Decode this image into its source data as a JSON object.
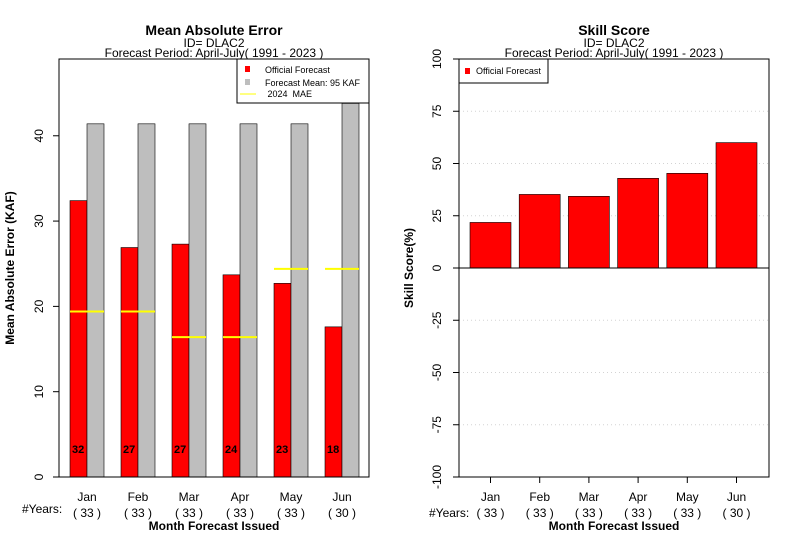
{
  "chart_data": [
    {
      "type": "bar",
      "title": "Mean Absolute Error",
      "subtitle1": "ID= DLAC2",
      "subtitle2": "Forecast Period: April-July( 1991 - 2023 )",
      "xlabel": "Month Forecast Issued",
      "ylabel": "Mean Absolute Error (KAF)",
      "categories": [
        "Jan",
        "Feb",
        "Mar",
        "Apr",
        "May",
        "Jun"
      ],
      "years_label": "#Years:",
      "years": [
        "( 33 )",
        "( 33 )",
        "( 33 )",
        "( 33 )",
        "( 33 )",
        "( 30 )"
      ],
      "ylim": [
        0,
        49
      ],
      "yticks": [
        0,
        10,
        20,
        30,
        40
      ],
      "series": [
        {
          "name": "Official Forecast",
          "color": "#ff0000",
          "values": [
            32.4,
            26.9,
            27.3,
            23.7,
            22.7,
            17.6
          ],
          "labels": [
            "32",
            "27",
            "27",
            "24",
            "23",
            "18"
          ]
        },
        {
          "name": "Forecast Mean: 95 KAF",
          "color": "#bebebe",
          "values": [
            41.4,
            41.4,
            41.4,
            41.4,
            41.4,
            43.8
          ]
        },
        {
          "name": " 2024  MAE",
          "color": "#ffff00",
          "values": [
            19.4,
            19.4,
            16.4,
            16.4,
            24.4,
            24.4
          ]
        }
      ],
      "legend_position": "top-right"
    },
    {
      "type": "bar",
      "title": "Skill Score",
      "subtitle1": "ID= DLAC2",
      "subtitle2": "Forecast Period: April-July( 1991 - 2023 )",
      "xlabel": "Month Forecast Issued",
      "ylabel": "Skill Score(%)",
      "categories": [
        "Jan",
        "Feb",
        "Mar",
        "Apr",
        "May",
        "Jun"
      ],
      "years_label": "#Years:",
      "years": [
        "( 33 )",
        "( 33 )",
        "( 33 )",
        "( 33 )",
        "( 33 )",
        "( 30 )"
      ],
      "ylim": [
        -100,
        100
      ],
      "yticks": [
        -100,
        -75,
        -50,
        -25,
        0,
        25,
        50,
        75,
        100
      ],
      "grid": true,
      "series": [
        {
          "name": "Official Forecast",
          "color": "#ff0000",
          "values": [
            21.8,
            35.2,
            34.3,
            42.9,
            45.3,
            60.0
          ]
        }
      ],
      "legend_position": "top-left"
    }
  ]
}
